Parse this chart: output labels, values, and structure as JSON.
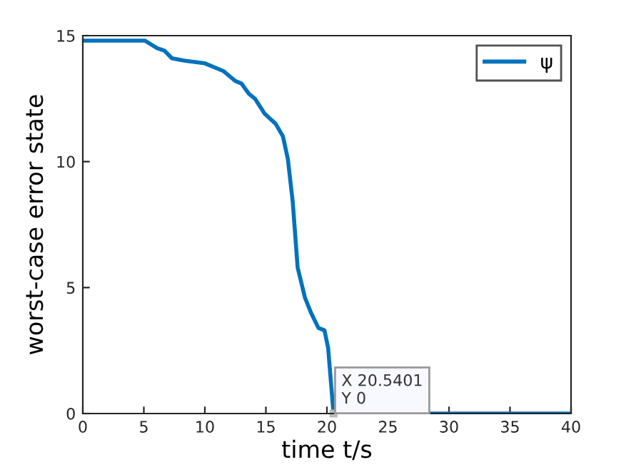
{
  "chart_data": {
    "type": "line",
    "xlabel": "time t/s",
    "ylabel": "worst-case error state",
    "x": [
      0,
      5.1,
      6.1,
      6.7,
      7.3,
      8.4,
      10.0,
      11.5,
      12.5,
      13.0,
      13.6,
      14.1,
      14.9,
      15.8,
      16.4,
      16.8,
      17.2,
      17.6,
      18.2,
      18.7,
      19.3,
      19.8,
      20.1,
      20.5401,
      40
    ],
    "series": [
      {
        "name": "ψ",
        "color": "#0072bd",
        "values": [
          14.8,
          14.8,
          14.5,
          14.4,
          14.1,
          14.0,
          13.9,
          13.6,
          13.2,
          13.1,
          12.7,
          12.5,
          11.9,
          11.5,
          11.0,
          10.1,
          8.4,
          5.8,
          4.6,
          4.0,
          3.4,
          3.3,
          2.6,
          0,
          0
        ]
      }
    ],
    "xlim": [
      0,
      40
    ],
    "ylim": [
      0,
      15
    ],
    "xticks": [
      0,
      5,
      10,
      15,
      20,
      25,
      30,
      35,
      40
    ],
    "yticks": [
      0,
      5,
      10,
      15
    ],
    "annotations": [
      {
        "text": "X 20.5401\nY 0",
        "x": 20.5401,
        "y": 0
      }
    ],
    "legend": "top right",
    "grid": false,
    "marker": "none",
    "line_style": "solid"
  }
}
